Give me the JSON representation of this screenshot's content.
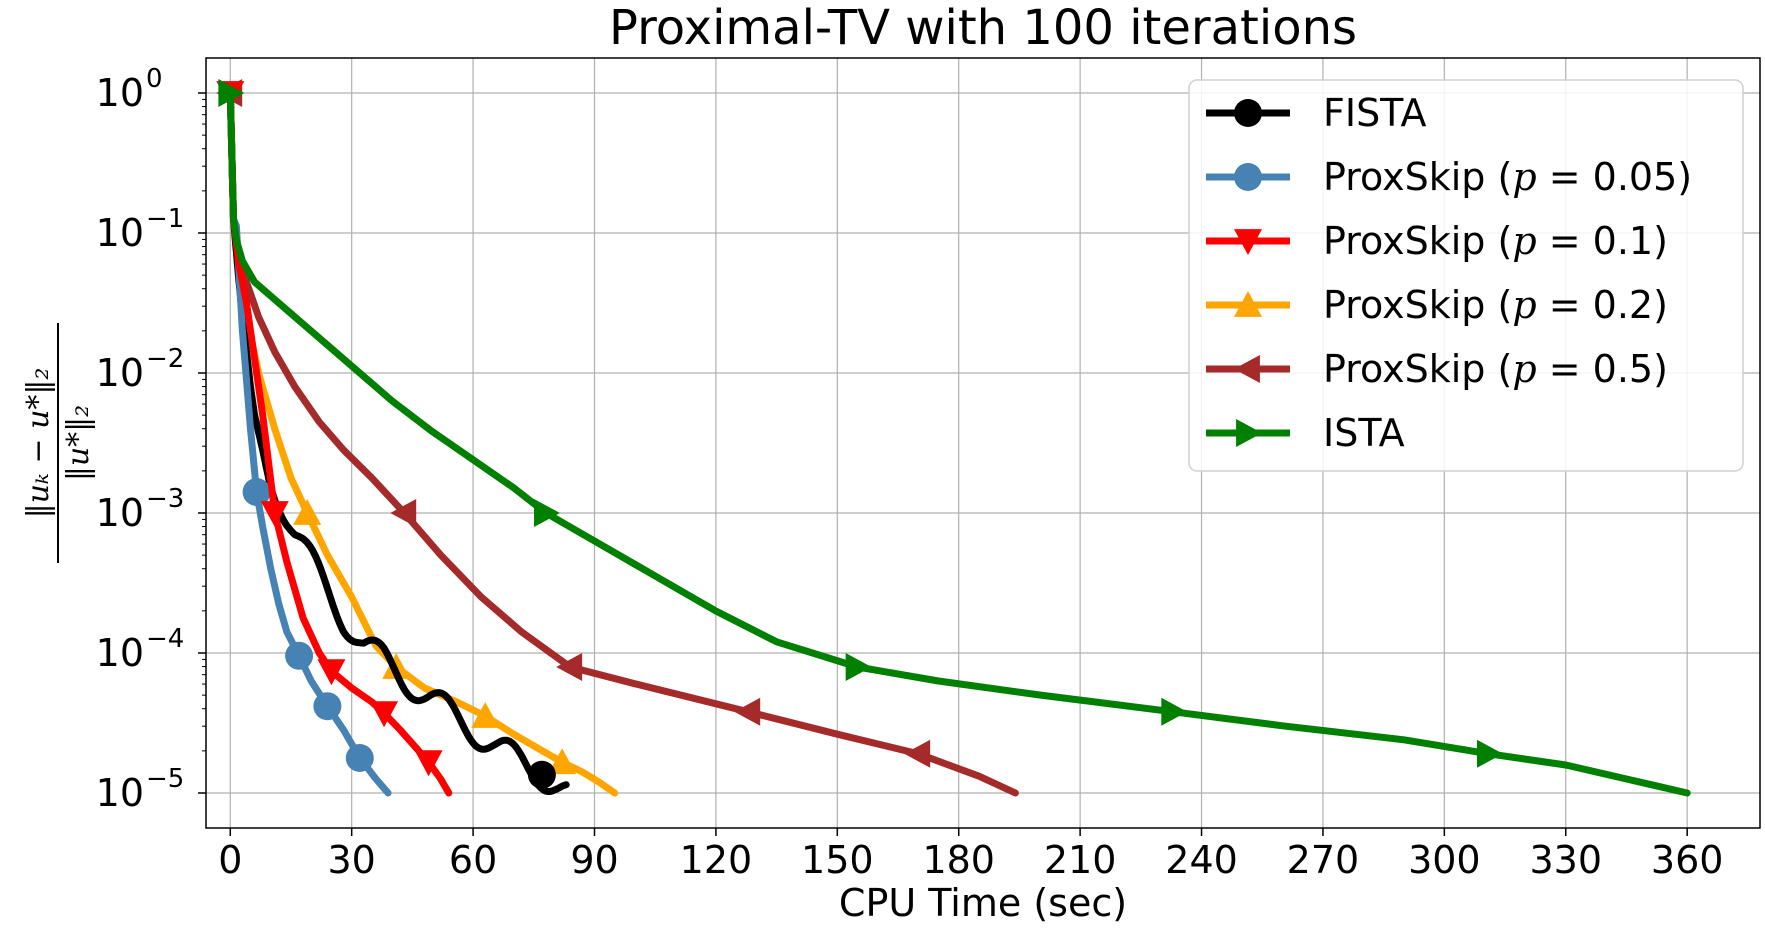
{
  "chart_data": {
    "type": "line",
    "title": "Proximal-TV with 100 iterations",
    "xlabel": "CPU Time (sec)",
    "ylabel_numerator": "‖uₖ − u*‖₂",
    "ylabel_denominator": "‖u*‖₂",
    "xlim": [
      -6,
      378
    ],
    "y_log10_lim": [
      -5.25,
      0.25
    ],
    "y_scale": "log",
    "grid": true,
    "legend_position": "top-right",
    "x_ticks": [
      0,
      30,
      60,
      90,
      120,
      150,
      180,
      210,
      240,
      270,
      300,
      330,
      360
    ],
    "x_tick_labels": [
      "0",
      "30",
      "60",
      "90",
      "120",
      "150",
      "180",
      "210",
      "240",
      "270",
      "300",
      "330",
      "360"
    ],
    "y_ticks": [
      {
        "exp": 0,
        "base": "10",
        "sup": "0"
      },
      {
        "exp": -1,
        "base": "10",
        "sup": "−1"
      },
      {
        "exp": -2,
        "base": "10",
        "sup": "−2"
      },
      {
        "exp": -3,
        "base": "10",
        "sup": "−3"
      },
      {
        "exp": -4,
        "base": "10",
        "sup": "−4"
      },
      {
        "exp": -5,
        "base": "10",
        "sup": "−5"
      }
    ],
    "series": [
      {
        "name": "ProxSkip (p = 0.5)",
        "legend": {
          "prefix": "ProxSkip (",
          "param": "p",
          "eq": " = 0.5",
          "suffix": ")"
        },
        "color": "#a52a2a",
        "marker": "triangle-left",
        "x": [
          0,
          0.8,
          2,
          4,
          7,
          11,
          16,
          22,
          28,
          35,
          43,
          52,
          62,
          72,
          84,
          100,
          128,
          150,
          170,
          185,
          194
        ],
        "log10_y": [
          0,
          -0.9,
          -1.15,
          -1.35,
          -1.6,
          -1.85,
          -2.1,
          -2.35,
          -2.55,
          -2.75,
          -3.0,
          -3.3,
          -3.6,
          -3.85,
          -4.1,
          -4.22,
          -4.42,
          -4.58,
          -4.72,
          -4.88,
          -5.0
        ],
        "markers": [
          {
            "x": 0,
            "log10_y": 0
          },
          {
            "x": 43,
            "log10_y": -3.0
          },
          {
            "x": 84,
            "log10_y": -4.1
          },
          {
            "x": 128,
            "log10_y": -4.42
          },
          {
            "x": 170,
            "log10_y": -4.72
          }
        ]
      },
      {
        "name": "ProxSkip (p = 0.2)",
        "legend": {
          "prefix": "ProxSkip (",
          "param": "p",
          "eq": " = 0.2",
          "suffix": ")"
        },
        "color": "#ffa500",
        "marker": "triangle-up",
        "x": [
          0,
          0.8,
          2,
          4,
          7,
          11,
          15,
          19,
          24,
          30,
          36,
          41,
          48,
          56,
          63,
          70,
          76,
          82,
          87,
          91,
          95
        ],
        "log10_y": [
          0,
          -0.9,
          -1.3,
          -1.6,
          -2.0,
          -2.4,
          -2.75,
          -3.0,
          -3.3,
          -3.6,
          -3.95,
          -4.1,
          -4.25,
          -4.35,
          -4.45,
          -4.58,
          -4.68,
          -4.78,
          -4.85,
          -4.92,
          -5.0
        ],
        "markers": [
          {
            "x": 19,
            "log10_y": -3.0
          },
          {
            "x": 41,
            "log10_y": -4.1
          },
          {
            "x": 63,
            "log10_y": -4.45
          },
          {
            "x": 82,
            "log10_y": -4.78
          }
        ]
      },
      {
        "name": "FISTA",
        "legend": {
          "prefix": "FISTA",
          "param": "",
          "eq": "",
          "suffix": ""
        },
        "color": "#000000",
        "marker": "circle",
        "x": [
          0,
          0.8,
          2,
          3,
          4,
          5,
          6,
          8,
          10,
          13,
          16,
          20,
          24,
          28,
          33,
          38,
          43,
          48,
          54,
          60,
          66,
          72,
          77,
          80,
          83
        ],
        "log10_y": [
          0,
          -0.9,
          -1.3,
          -1.6,
          -1.85,
          -2.1,
          -2.3,
          -2.55,
          -2.75,
          -2.95,
          -3.15,
          -3.35,
          -3.55,
          -3.75,
          -3.95,
          -4.05,
          -4.18,
          -4.3,
          -4.42,
          -4.55,
          -4.68,
          -4.78,
          -4.87,
          -4.93,
          -5.0
        ],
        "wiggle": true,
        "markers": [
          {
            "x": 77,
            "log10_y": -4.87
          }
        ]
      },
      {
        "name": "ProxSkip (p = 0.05)",
        "legend": {
          "prefix": "ProxSkip (",
          "param": "p",
          "eq": " = 0.05",
          "suffix": ")"
        },
        "color": "#4682b4",
        "marker": "circle",
        "x": [
          0,
          0.8,
          1.5,
          2.2,
          3,
          4,
          5,
          6.5,
          8,
          10,
          12,
          14,
          17,
          20,
          24,
          28,
          32,
          36,
          39
        ],
        "log10_y": [
          0,
          -0.9,
          -0.95,
          -1.3,
          -1.7,
          -2.05,
          -2.4,
          -2.85,
          -3.1,
          -3.4,
          -3.65,
          -3.85,
          -4.02,
          -4.2,
          -4.38,
          -4.55,
          -4.75,
          -4.9,
          -5.0
        ],
        "markers": [
          {
            "x": 6.5,
            "log10_y": -2.85
          },
          {
            "x": 17,
            "log10_y": -4.02
          },
          {
            "x": 24,
            "log10_y": -4.38
          },
          {
            "x": 32,
            "log10_y": -4.75
          }
        ]
      },
      {
        "name": "ProxSkip (p = 0.1)",
        "legend": {
          "prefix": "ProxSkip (",
          "param": "p",
          "eq": " = 0.1",
          "suffix": ")"
        },
        "color": "#ff0000",
        "marker": "triangle-down",
        "x": [
          0,
          0.8,
          2,
          4,
          6,
          8,
          11,
          14,
          18,
          22,
          25,
          30,
          35,
          38,
          42,
          46,
          49,
          52,
          54
        ],
        "log10_y": [
          0,
          -0.9,
          -1.2,
          -1.5,
          -1.9,
          -2.3,
          -3.0,
          -3.35,
          -3.75,
          -4.0,
          -4.13,
          -4.25,
          -4.35,
          -4.43,
          -4.55,
          -4.68,
          -4.78,
          -4.9,
          -5.0
        ],
        "markers": [
          {
            "x": 0,
            "log10_y": 0
          },
          {
            "x": 11,
            "log10_y": -3.0
          },
          {
            "x": 25,
            "log10_y": -4.13
          },
          {
            "x": 38,
            "log10_y": -4.43
          },
          {
            "x": 49,
            "log10_y": -4.78
          }
        ]
      },
      {
        "name": "ISTA",
        "legend": {
          "prefix": "ISTA",
          "param": "",
          "eq": "",
          "suffix": ""
        },
        "color": "#008000",
        "marker": "triangle-right",
        "x": [
          0,
          0.8,
          1.5,
          3,
          6,
          12,
          20,
          30,
          40,
          50,
          60,
          70,
          78,
          90,
          105,
          120,
          135,
          155,
          175,
          200,
          233,
          260,
          290,
          311,
          330,
          345,
          360
        ],
        "log10_y": [
          0,
          -0.9,
          -1.05,
          -1.2,
          -1.35,
          -1.5,
          -1.7,
          -1.95,
          -2.2,
          -2.42,
          -2.62,
          -2.82,
          -3.0,
          -3.2,
          -3.45,
          -3.7,
          -3.92,
          -4.1,
          -4.2,
          -4.3,
          -4.42,
          -4.52,
          -4.62,
          -4.72,
          -4.8,
          -4.9,
          -5.0
        ],
        "markers": [
          {
            "x": 0,
            "log10_y": 0
          },
          {
            "x": 78,
            "log10_y": -3.0
          },
          {
            "x": 155,
            "log10_y": -4.1
          },
          {
            "x": 233,
            "log10_y": -4.42
          },
          {
            "x": 311,
            "log10_y": -4.72
          }
        ]
      }
    ],
    "legend_order": [
      "FISTA",
      "ProxSkip (p = 0.05)",
      "ProxSkip (p = 0.1)",
      "ProxSkip (p = 0.2)",
      "ProxSkip (p = 0.5)",
      "ISTA"
    ]
  }
}
